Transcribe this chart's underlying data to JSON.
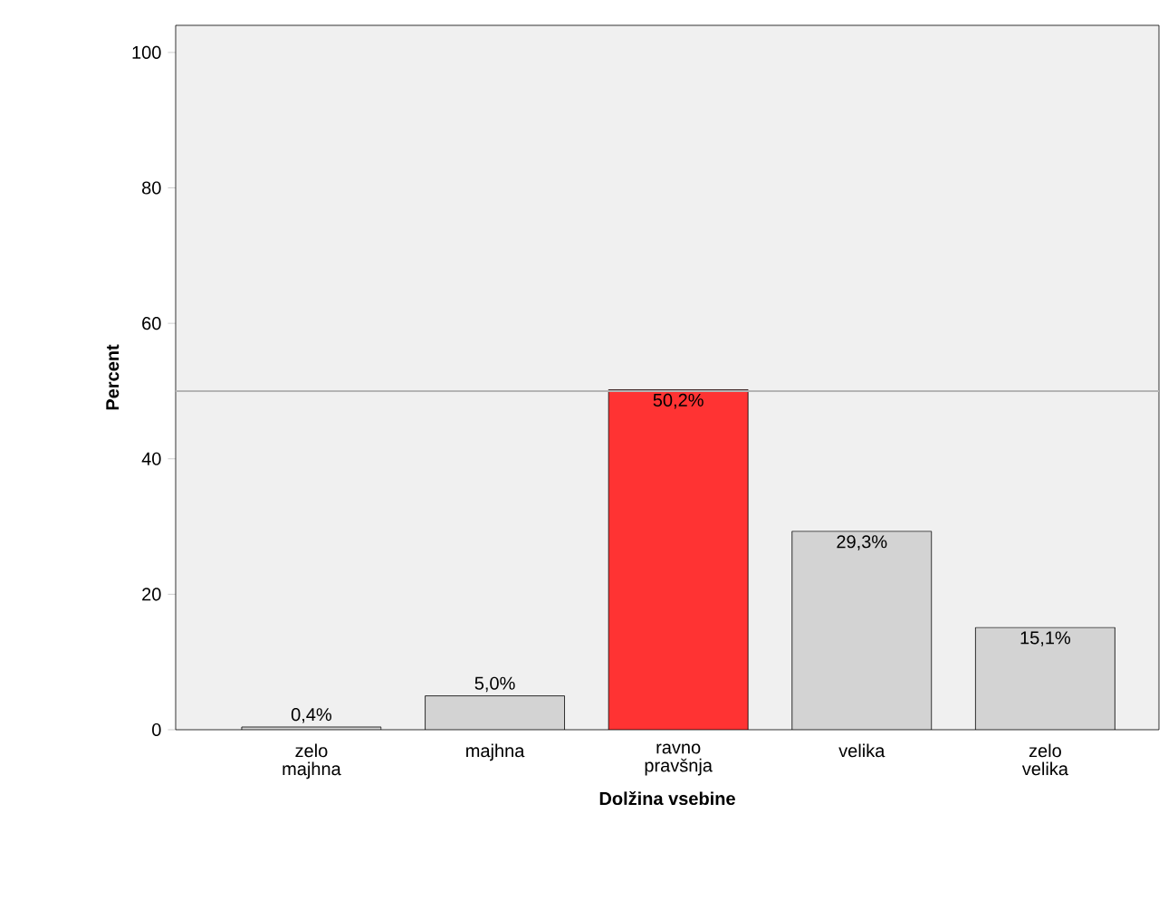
{
  "chart_data": {
    "type": "bar",
    "xlabel": "Dolžina vsebine",
    "ylabel": "Percent",
    "categories": [
      "zelo majhna",
      "majhna",
      "ravno pravšnja",
      "velika",
      "zelo velika"
    ],
    "values": [
      0.4,
      5.0,
      50.2,
      29.3,
      15.1
    ],
    "value_labels": [
      "0,4%",
      "5,0%",
      "50,2%",
      "29,3%",
      "15,1%"
    ],
    "colors": [
      "#d3d3d3",
      "#d3d3d3",
      "#ff3333",
      "#d3d3d3",
      "#d3d3d3"
    ],
    "ylim": [
      0,
      104
    ],
    "yticks": [
      0,
      20,
      40,
      60,
      80,
      100
    ],
    "ref_lines": [
      {
        "axis": "y",
        "value": 50,
        "color": "#b4b4b4"
      }
    ],
    "grid": false
  }
}
